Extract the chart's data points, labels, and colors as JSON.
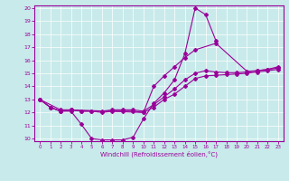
{
  "title": "",
  "xlabel": "Windchill (Refroidissement éolien,°C)",
  "bg_color": "#c8eaea",
  "grid_color": "#ffffff",
  "line_color": "#990099",
  "xlim": [
    -0.5,
    23.5
  ],
  "ylim": [
    9.8,
    20.2
  ],
  "xticks": [
    0,
    1,
    2,
    3,
    4,
    5,
    6,
    7,
    8,
    9,
    10,
    11,
    12,
    13,
    14,
    15,
    16,
    17,
    18,
    19,
    20,
    21,
    22,
    23
  ],
  "yticks": [
    10,
    11,
    12,
    13,
    14,
    15,
    16,
    17,
    18,
    19,
    20
  ],
  "line1_x": [
    0,
    1,
    2,
    3,
    4,
    5,
    6,
    7,
    8,
    9,
    10,
    11,
    12,
    13,
    14,
    15,
    16,
    17
  ],
  "line1_y": [
    13.0,
    12.4,
    12.1,
    12.1,
    11.1,
    10.0,
    9.9,
    9.9,
    9.9,
    10.1,
    11.5,
    12.7,
    13.5,
    14.5,
    16.5,
    20.0,
    19.5,
    17.5
  ],
  "line2_x": [
    0,
    1,
    2,
    3,
    4,
    5,
    6,
    7,
    8,
    9,
    10,
    11,
    12,
    13,
    14,
    15,
    16,
    17,
    18,
    19,
    20,
    21,
    22,
    23
  ],
  "line2_y": [
    13.0,
    12.4,
    12.1,
    12.2,
    12.1,
    12.1,
    12.1,
    12.2,
    12.2,
    12.2,
    12.1,
    12.6,
    13.2,
    13.8,
    14.5,
    15.0,
    15.2,
    15.1,
    15.05,
    15.05,
    15.1,
    15.2,
    15.3,
    15.4
  ],
  "line3_x": [
    0,
    1,
    2,
    3,
    4,
    5,
    6,
    7,
    8,
    9,
    10,
    11,
    12,
    13,
    14,
    15,
    16,
    17,
    18,
    19,
    20,
    21,
    22,
    23
  ],
  "line3_y": [
    13.0,
    12.4,
    12.1,
    12.2,
    12.1,
    12.1,
    12.0,
    12.1,
    12.1,
    12.1,
    12.0,
    12.4,
    13.0,
    13.4,
    14.0,
    14.6,
    14.8,
    14.85,
    14.9,
    14.95,
    15.0,
    15.1,
    15.2,
    15.3
  ],
  "line4_x": [
    0,
    2,
    3,
    10,
    11,
    12,
    13,
    14,
    15,
    17,
    20,
    21,
    22,
    23
  ],
  "line4_y": [
    13.0,
    12.2,
    12.2,
    12.0,
    14.0,
    14.8,
    15.5,
    16.2,
    16.8,
    17.3,
    15.15,
    15.2,
    15.3,
    15.5
  ]
}
